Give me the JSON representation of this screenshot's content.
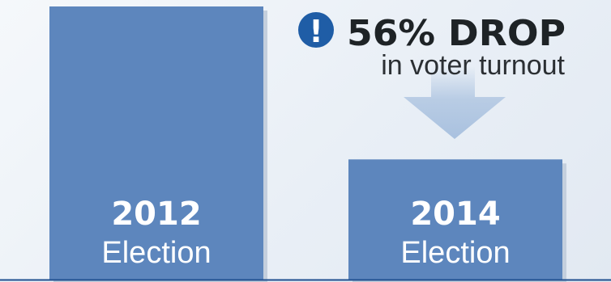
{
  "chart_data": {
    "type": "bar",
    "categories": [
      "2012",
      "2014"
    ],
    "category_sublabels": [
      "Election",
      "Election"
    ],
    "values": [
      100,
      44
    ],
    "ylim": [
      0,
      100
    ],
    "grid": false,
    "annotation": {
      "headline": "56% DROP",
      "subtext": "in voter turnout",
      "icon": "exclamation-icon"
    }
  },
  "colors": {
    "bar": "#5d86bd",
    "bar_shadow": "#c4cfdd",
    "arrow": "#a9c1df",
    "headline": "#1e2326",
    "subtext": "#2b2f33",
    "icon": "#1f5da6",
    "baseline": "#1f4f8f"
  }
}
